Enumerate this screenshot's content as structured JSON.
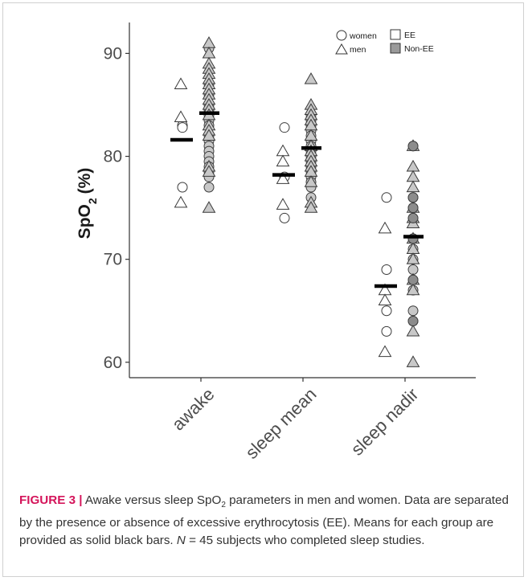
{
  "caption": {
    "label": "FIGURE 3 |",
    "part1": "Awake versus sleep SpO",
    "part1_sub": "2",
    "part2": "parameters in men and women. Data are separated by the presence or absence of excessive erythrocytosis (EE). Means for each group are provided as solid black bars.",
    "n_symbol": "N",
    "part3": "= 45 subjects who completed sleep studies."
  },
  "colors": {
    "ee_fill": "#ffffff",
    "non_ee_fill": "#c8c8c8",
    "non_ee_dark_fill": "#8c8c8c",
    "marker_stroke": "#3a3a3a",
    "mean_bar": "#000000",
    "caption_label": "#d4145a"
  },
  "chart_data": {
    "type": "scatter",
    "title": "",
    "ylabel_main": "SpO",
    "ylabel_sub": "2",
    "ylabel_unit": "(%)",
    "xlabel": "",
    "ylim": [
      58.5,
      93
    ],
    "yticks": [
      60,
      70,
      80,
      90
    ],
    "categories": [
      "awake",
      "sleep mean",
      "sleep nadir"
    ],
    "legend": {
      "position": "top-right",
      "women_label": "women",
      "men_label": "men",
      "ee_label": "EE",
      "non_ee_label": "Non-EE"
    },
    "groups": [
      {
        "category": "awake",
        "ee_women": [
          83,
          82.8,
          77
        ],
        "ee_men": [
          87,
          83.8,
          75.5
        ],
        "non_ee_women": [
          90.5,
          87,
          86,
          85,
          84.5,
          84,
          83.5,
          83,
          82,
          81.5,
          81,
          80.5,
          80,
          79.5,
          79,
          78.5,
          78,
          77
        ],
        "non_ee_men": [
          91,
          90,
          89,
          88.5,
          88,
          87.5,
          87,
          86.5,
          86,
          85.5,
          85,
          84.5,
          84,
          83,
          82.5,
          82,
          79,
          78.5,
          75
        ],
        "ee_mean": 81.6,
        "non_ee_mean": 84.2
      },
      {
        "category": "sleep mean",
        "ee_women": [
          82.8,
          78,
          74
        ],
        "ee_men": [
          80.5,
          79.5,
          77.8,
          75.3
        ],
        "non_ee_women": [
          84,
          83.5,
          83,
          82.5,
          82,
          81.5,
          81,
          80.5,
          80,
          79.5,
          79,
          78.5,
          78,
          77.5,
          77,
          76
        ],
        "non_ee_men": [
          87.5,
          85,
          84.5,
          84,
          83.5,
          83,
          82,
          81,
          80.5,
          80,
          79.5,
          79,
          78.5,
          77.5,
          75.5,
          75
        ],
        "ee_mean": 78.2,
        "non_ee_mean": 80.8
      },
      {
        "category": "sleep nadir",
        "ee_women": [
          76,
          69,
          65,
          63
        ],
        "ee_men": [
          73,
          67,
          66,
          61
        ],
        "non_ee_women": [
          81,
          76,
          75,
          74,
          72,
          71,
          70,
          69,
          68,
          67,
          65,
          64
        ],
        "non_ee_men": [
          81,
          79,
          78,
          77,
          75,
          74,
          73.5,
          72,
          71,
          70,
          68,
          67,
          63,
          60
        ],
        "non_ee_dark_women": [
          81,
          76,
          75,
          74,
          72,
          68,
          64
        ],
        "ee_mean": 67.4,
        "non_ee_mean": 72.2
      }
    ]
  }
}
